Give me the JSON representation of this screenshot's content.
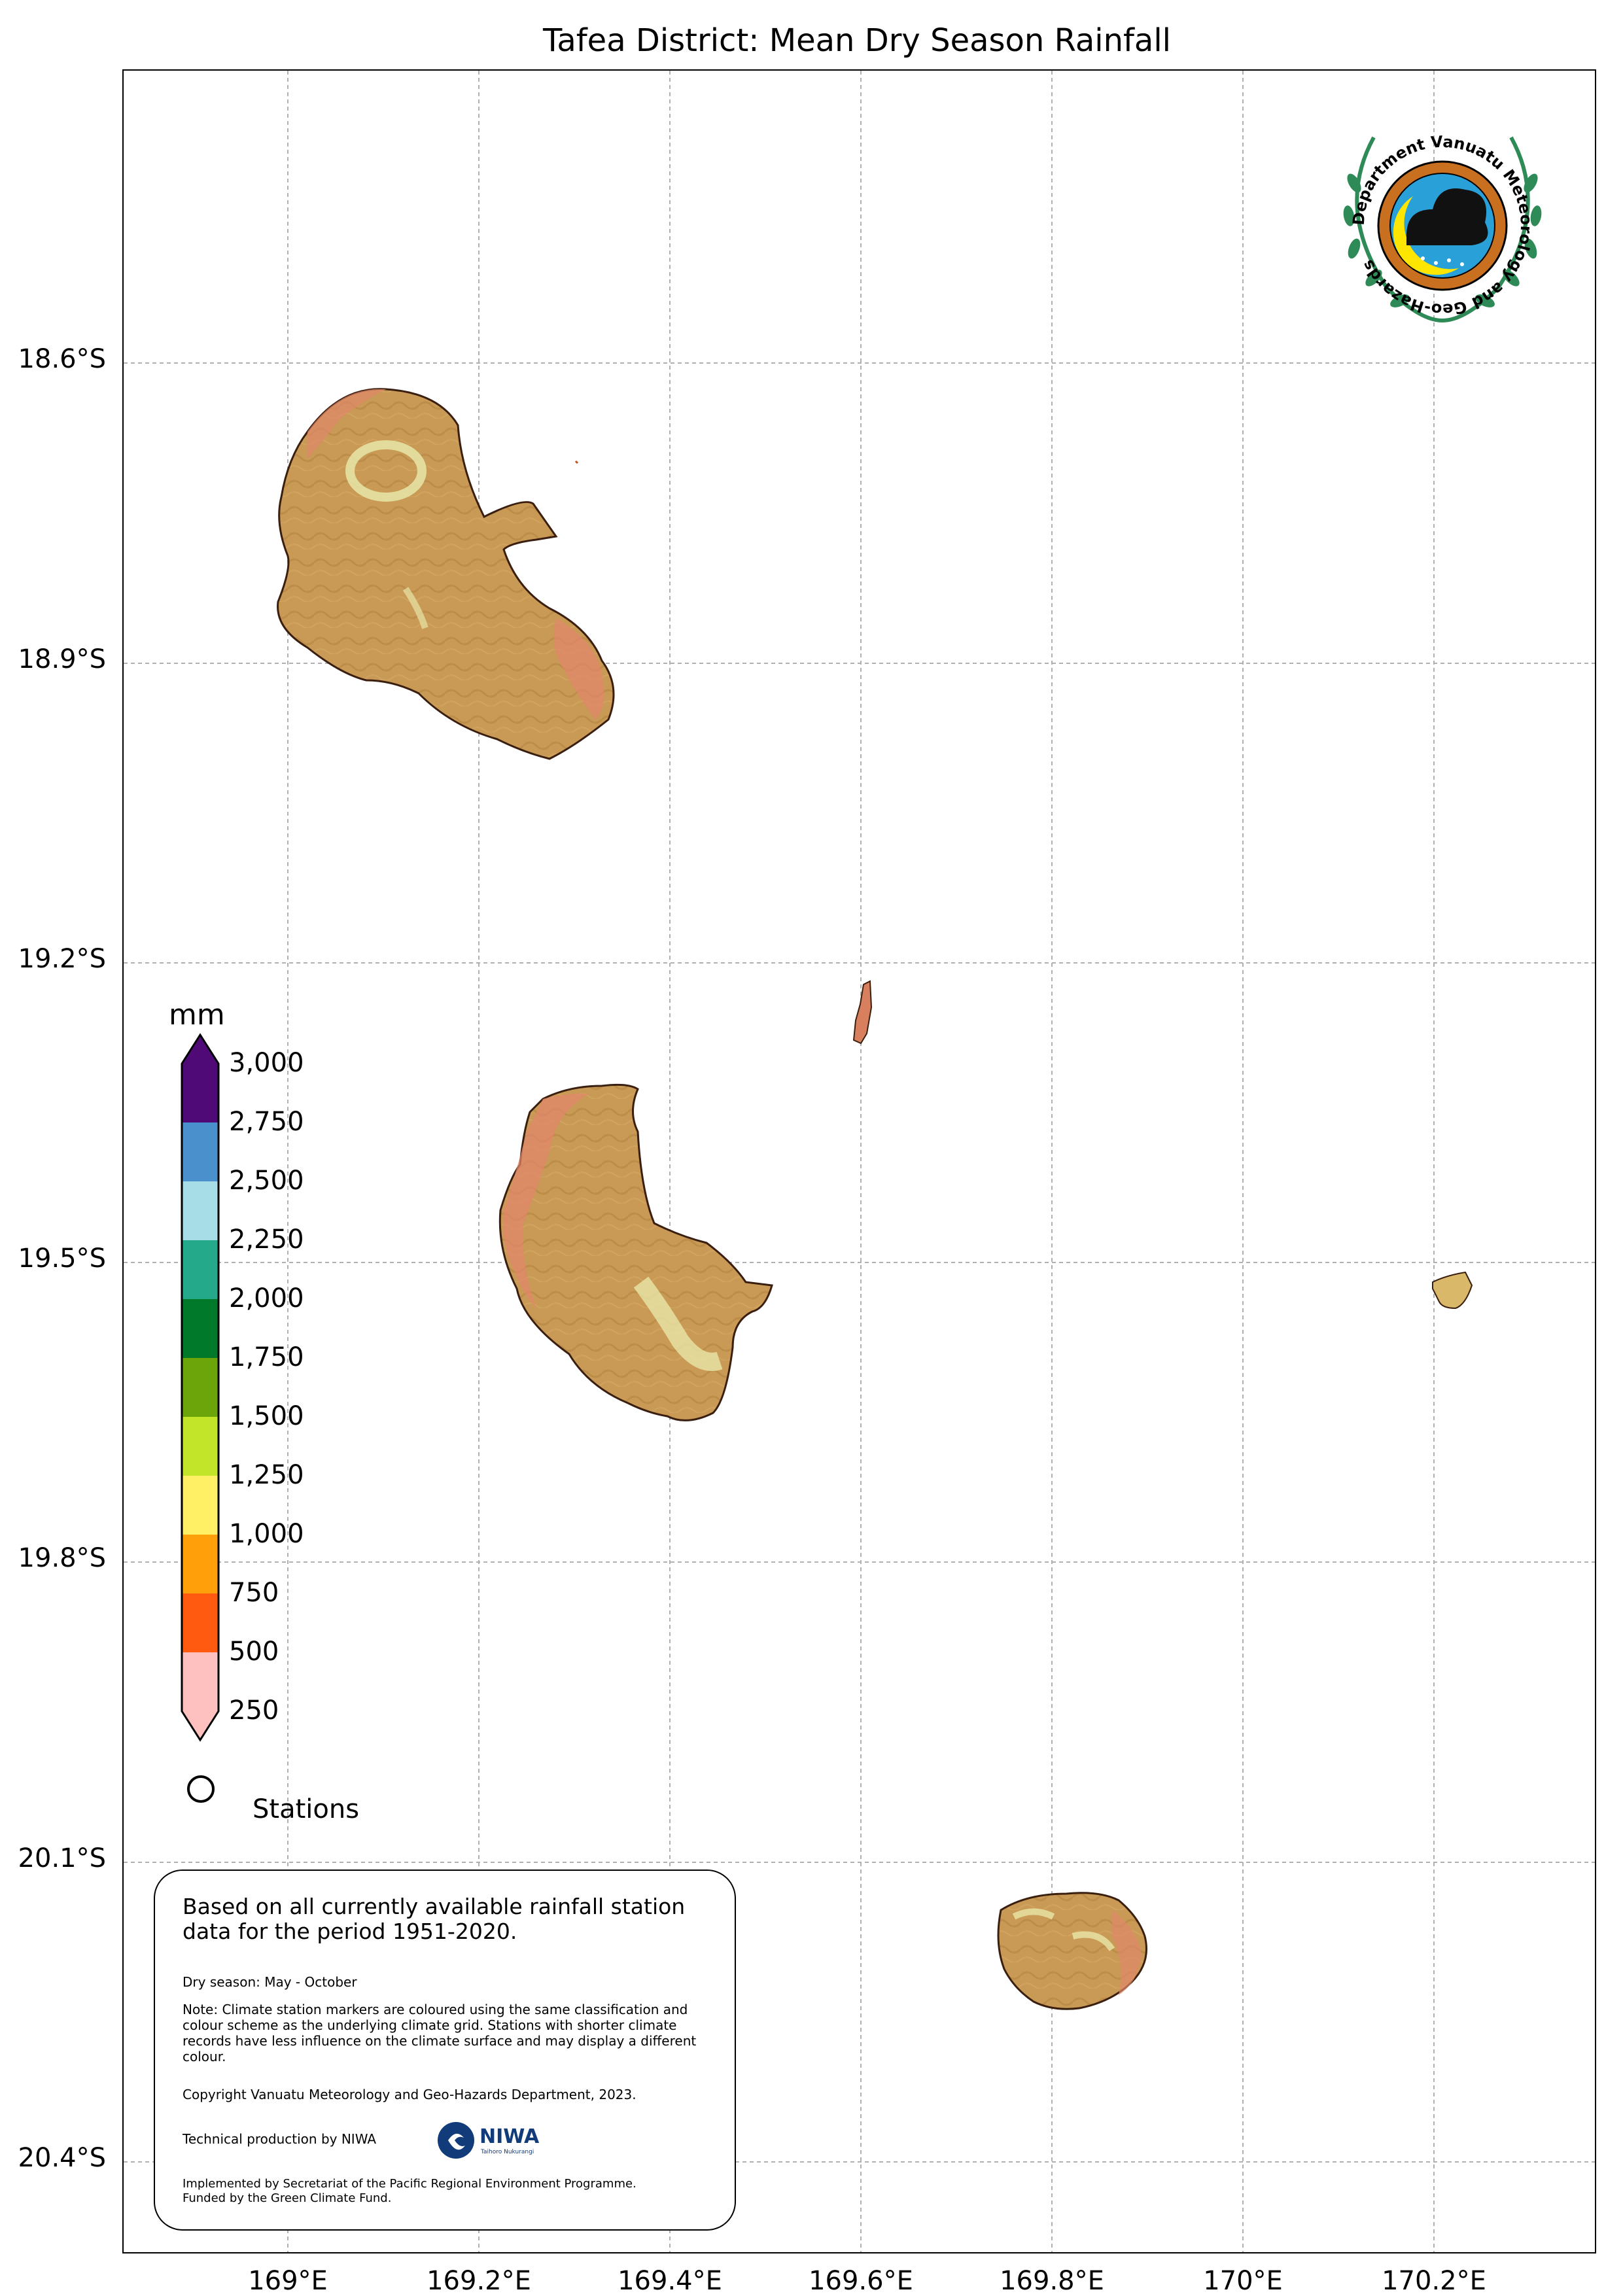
{
  "title": "Tafea District: Mean Dry Season Rainfall",
  "axes": {
    "y_ticks": [
      "18.6°S",
      "18.9°S",
      "19.2°S",
      "19.5°S",
      "19.8°S",
      "20.1°S",
      "20.4°S"
    ],
    "x_ticks": [
      "169°E",
      "169.2°E",
      "169.4°E",
      "169.6°E",
      "169.8°E",
      "170°E",
      "170.2°E"
    ]
  },
  "colorbar": {
    "unit": "mm",
    "labels": [
      "3,000",
      "2,750",
      "2,500",
      "2,250",
      "2,000",
      "1,750",
      "1,500",
      "1,250",
      "1,000",
      "750",
      "500",
      "250"
    ],
    "colors": [
      "#4f0a78",
      "#4a90cc",
      "#a6dde6",
      "#24a98a",
      "#007a2a",
      "#6ba50a",
      "#c2e52a",
      "#fff066",
      "#ffa00a",
      "#ff5a10",
      "#ffc0c0"
    ]
  },
  "legend": {
    "stations_label": "Stations"
  },
  "note": {
    "main": "Based on all currently available rainfall station data for the period 1951-2020.",
    "dry_season": "Dry season: May - October",
    "classification": "Note: Climate station markers are coloured using the same classification and colour scheme as the underlying climate grid. Stations with shorter climate records have less influence on the climate surface and may display a different colour.",
    "copyright": "Copyright Vanuatu Meteorology and Geo-Hazards Department, 2023.",
    "production": "Technical production by NIWA",
    "implemented": "Implemented by Secretariat of the Pacific Regional Environment Programme.",
    "funded": "Funded by the Green Climate Fund.",
    "niwa_logo_text": "NIWA",
    "niwa_logo_subtext": "Taihoro Nukurangi"
  },
  "logo": {
    "ring_text": "Department Vanuatu Meteorology and Geo-Hazards"
  },
  "colors": {
    "land_base": "#c99a55",
    "land_low": "#e0876a",
    "land_high": "#e8e6a8",
    "grid": "#b0b0b0",
    "logo_green": "#2e8b57",
    "logo_blue": "#2aa0d8",
    "logo_yellow": "#ffe600",
    "logo_orange": "#c87020"
  }
}
